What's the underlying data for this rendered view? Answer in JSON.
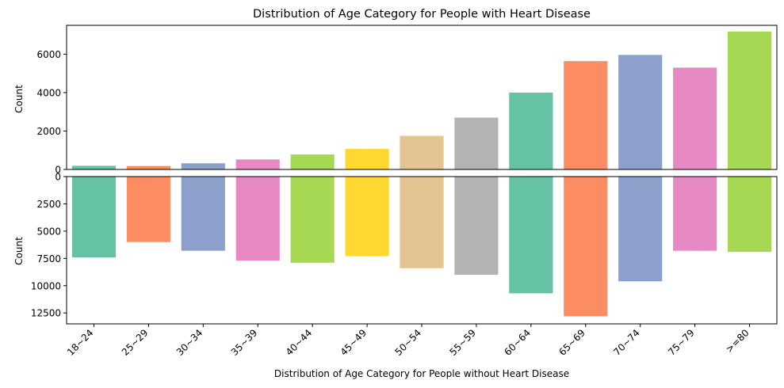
{
  "chart_data": [
    {
      "type": "bar",
      "title": "Distribution of Age Category for People with Heart Disease",
      "xlabel": "",
      "ylabel": "Count",
      "ylim": [
        0,
        7500
      ],
      "yticks": [
        0,
        2000,
        4000,
        6000
      ],
      "categories": [
        "18~24",
        "25~29",
        "30~34",
        "35~39",
        "40~44",
        "45~49",
        "50~54",
        "55~59",
        "60~64",
        "65~69",
        "70~74",
        "75~79",
        ">=80"
      ],
      "values": [
        190,
        180,
        320,
        520,
        780,
        1070,
        1750,
        2700,
        4000,
        5640,
        5960,
        5300,
        7180
      ]
    },
    {
      "type": "bar",
      "title": "",
      "xlabel": "Distribution of Age Category for People without Heart Disease",
      "ylabel": "Count",
      "ylim": [
        0,
        13500
      ],
      "inverted": true,
      "yticks": [
        0,
        2500,
        5000,
        7500,
        10000,
        12500
      ],
      "categories": [
        "18~24",
        "25~29",
        "30~34",
        "35~39",
        "40~44",
        "45~49",
        "50~54",
        "55~59",
        "60~64",
        "65~69",
        "70~74",
        "75~79",
        ">=80"
      ],
      "values": [
        7400,
        6000,
        6800,
        7700,
        7900,
        7300,
        8400,
        9000,
        10700,
        12800,
        9600,
        6800,
        6900
      ]
    }
  ],
  "colors": [
    "#66c2a5",
    "#fc8d62",
    "#8da0cb",
    "#e78ac3",
    "#a6d854",
    "#ffd92f",
    "#e5c494",
    "#b3b3b3"
  ]
}
